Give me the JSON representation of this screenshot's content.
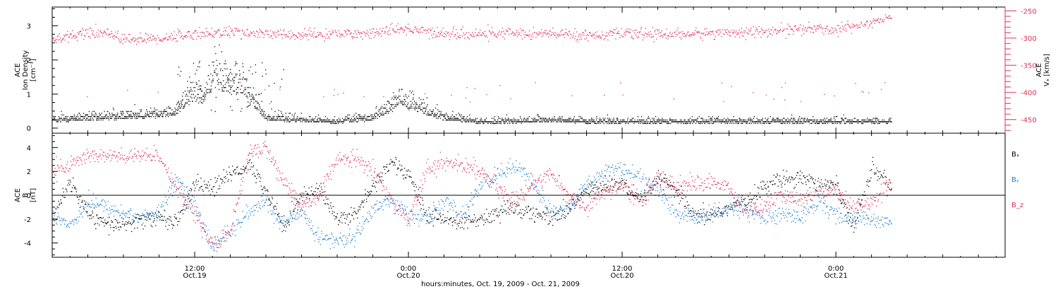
{
  "chart_data": [
    {
      "type": "scatter",
      "panel": "plasma",
      "xlabel": "hours:minutes, Oct. 19, 2009 - Oct. 21, 2009",
      "x_ticks": [
        {
          "hours": 12,
          "label": "12:00",
          "sublabel": "Oct.19"
        },
        {
          "hours": 24,
          "label": "0:00",
          "sublabel": "Oct.20"
        },
        {
          "hours": 36,
          "label": "12:00",
          "sublabel": "Oct.20"
        },
        {
          "hours": 48,
          "label": "0:00",
          "sublabel": "Oct.21"
        }
      ],
      "x_range_hours": [
        4,
        57.5
      ],
      "data_end_hours": 51.1,
      "left_axis": {
        "label_lines": [
          "ACE",
          "Ion Density",
          "[cm⁻³]"
        ],
        "ylim": [
          -0.15,
          3.55
        ],
        "ticks": [
          "0",
          "1",
          "2",
          "3"
        ],
        "tick_values": [
          0,
          1,
          2,
          3
        ]
      },
      "right_axis": {
        "label_lines": [
          "ACE",
          "Vₓ [km/s]"
        ],
        "ylim": [
          -475,
          -243
        ],
        "ticks": [
          "-250",
          "-300",
          "-350",
          "-400",
          "-450"
        ],
        "tick_values": [
          -250,
          -300,
          -350,
          -400,
          -450
        ],
        "color": "#e0305a"
      },
      "series": [
        {
          "key": "density",
          "axis": "left",
          "color": "#000000",
          "x_hours": [
            4,
            6,
            8,
            10,
            11,
            11.5,
            12,
            12.5,
            13,
            14,
            14.5,
            15,
            16,
            18,
            20,
            22,
            23,
            23.5,
            24,
            26,
            28,
            30,
            32,
            34,
            36,
            38,
            40,
            42,
            44,
            46,
            48,
            50,
            51
          ],
          "y": [
            0.25,
            0.3,
            0.35,
            0.4,
            0.5,
            0.8,
            1.0,
            0.9,
            1.5,
            1.2,
            1.3,
            1.0,
            0.3,
            0.25,
            0.2,
            0.3,
            0.6,
            0.9,
            0.7,
            0.3,
            0.2,
            0.2,
            0.25,
            0.2,
            0.2,
            0.2,
            0.2,
            0.2,
            0.2,
            0.2,
            0.2,
            0.2,
            0.2
          ]
        },
        {
          "key": "vx",
          "axis": "right",
          "color": "#e0305a",
          "x_hours": [
            4,
            6,
            7,
            8,
            10,
            12,
            14,
            16,
            18,
            20,
            22,
            24,
            26,
            28,
            30,
            32,
            34,
            36,
            38,
            40,
            42,
            44,
            46,
            48,
            50,
            51
          ],
          "y": [
            -300,
            -292,
            -288,
            -302,
            -300,
            -292,
            -288,
            -292,
            -294,
            -292,
            -290,
            -282,
            -292,
            -292,
            -290,
            -292,
            -294,
            -292,
            -292,
            -292,
            -288,
            -288,
            -282,
            -284,
            -270,
            -262
          ]
        }
      ]
    },
    {
      "type": "scatter",
      "panel": "magnetic",
      "left_axis": {
        "label_lines": [
          "ACE",
          "B",
          "[nT]"
        ],
        "ylim": [
          -5.2,
          5.2
        ],
        "ticks": [
          "-4",
          "-2",
          "0",
          "2",
          "4"
        ],
        "tick_values": [
          -4,
          -2,
          0,
          2,
          4
        ]
      },
      "zero_line": true,
      "series": [
        {
          "name": "Bₓ",
          "color": "#000000",
          "x_hours": [
            4,
            5,
            6,
            7,
            8,
            9,
            10,
            11,
            12,
            13,
            14,
            15,
            16,
            17,
            18,
            19,
            20,
            21,
            22,
            23,
            24,
            25,
            26,
            27,
            28,
            29,
            30,
            31,
            32,
            33,
            34,
            35,
            36,
            37,
            38,
            39,
            40,
            41,
            42,
            43,
            44,
            45,
            46,
            47,
            48,
            49,
            50,
            51
          ],
          "y": [
            -2,
            1.2,
            -1.5,
            -2.5,
            -2.4,
            -2.1,
            -1.8,
            -2.2,
            1.0,
            0.6,
            1.8,
            2.6,
            0.4,
            -2.5,
            0.0,
            0.5,
            -2.0,
            -1.5,
            0.8,
            2.8,
            1.9,
            -1.8,
            -2.0,
            -2.2,
            -2.0,
            -1.5,
            -1.0,
            -1.6,
            -1.8,
            -1.2,
            0.5,
            0.8,
            1.0,
            -0.5,
            1.4,
            0.5,
            -1.8,
            -1.6,
            -1.0,
            -0.5,
            0.8,
            1.4,
            1.6,
            1.0,
            0.8,
            -2.5,
            2.3,
            1.0
          ]
        },
        {
          "name": "Bᵧ",
          "color": "#1a7fd4",
          "x_hours": [
            4,
            5,
            6,
            7,
            8,
            9,
            10,
            11,
            12,
            13,
            14,
            15,
            16,
            17,
            18,
            19,
            20,
            21,
            22,
            23,
            24,
            25,
            26,
            27,
            28,
            29,
            30,
            31,
            32,
            33,
            34,
            35,
            36,
            37,
            38,
            39,
            40,
            41,
            42,
            43,
            44,
            45,
            46,
            47,
            48,
            49,
            50,
            51
          ],
          "y": [
            -1.5,
            -2.5,
            -0.5,
            -1.0,
            -1.5,
            -1.8,
            -1.5,
            1.5,
            -1.0,
            -4.2,
            -3.0,
            -1.5,
            -0.5,
            -2.5,
            -1.5,
            -3.5,
            -3.8,
            -3.5,
            -1.0,
            -0.5,
            -1.5,
            -2.0,
            -0.5,
            -1.8,
            0.8,
            1.8,
            2.5,
            1.0,
            -1.5,
            -1.0,
            1.0,
            2.0,
            2.2,
            1.5,
            0.5,
            -1.5,
            -1.8,
            -1.6,
            -1.2,
            -1.0,
            -2.0,
            -1.5,
            -1.8,
            -0.5,
            -1.5,
            -2.0,
            -2.0,
            -2.2
          ]
        },
        {
          "name": "B_z",
          "color": "#e0305a",
          "x_hours": [
            4,
            5,
            6,
            7,
            8,
            9,
            10,
            11,
            12,
            13,
            14,
            15,
            16,
            17,
            18,
            19,
            20,
            21,
            22,
            23,
            24,
            25,
            26,
            27,
            28,
            29,
            30,
            31,
            32,
            33,
            34,
            35,
            36,
            37,
            38,
            39,
            40,
            41,
            42,
            43,
            44,
            45,
            46,
            47,
            48,
            49,
            50,
            51
          ],
          "y": [
            2.0,
            2.6,
            3.4,
            3.3,
            3.2,
            3.3,
            3.4,
            0.5,
            -1.5,
            -4.3,
            -3.0,
            3.5,
            4.1,
            1.0,
            -1.0,
            0.2,
            3.0,
            3.1,
            2.2,
            -0.5,
            -2.0,
            2.2,
            2.8,
            2.5,
            2.2,
            0.5,
            -0.5,
            1.0,
            1.8,
            0.0,
            -1.0,
            0.5,
            0.8,
            -0.5,
            1.5,
            0.8,
            1.0,
            1.2,
            0.5,
            -1.5,
            -0.8,
            0.0,
            -0.5,
            0.5,
            0.5,
            -1.0,
            -0.5,
            1.0
          ]
        }
      ]
    }
  ]
}
